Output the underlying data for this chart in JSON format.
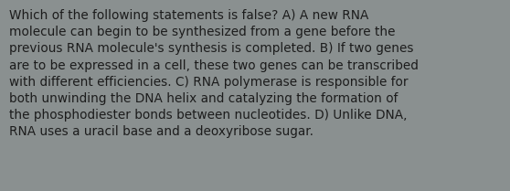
{
  "text": "Which of the following statements is false? A) A new RNA\nmolecule can begin to be synthesized from a gene before the\nprevious RNA molecule's synthesis is completed. B) If two genes\nare to be expressed in a cell, these two genes can be transcribed\nwith different efficiencies. C) RNA polymerase is responsible for\nboth unwinding the DNA helix and catalyzing the formation of\nthe phosphodiester bonds between nucleotides. D) Unlike DNA,\nRNA uses a uracil base and a deoxyribose sugar.",
  "background_color": "#8a9090",
  "text_color": "#1c1c1c",
  "font_size": 9.8,
  "fig_width": 5.58,
  "fig_height": 2.09,
  "dpi": 100
}
